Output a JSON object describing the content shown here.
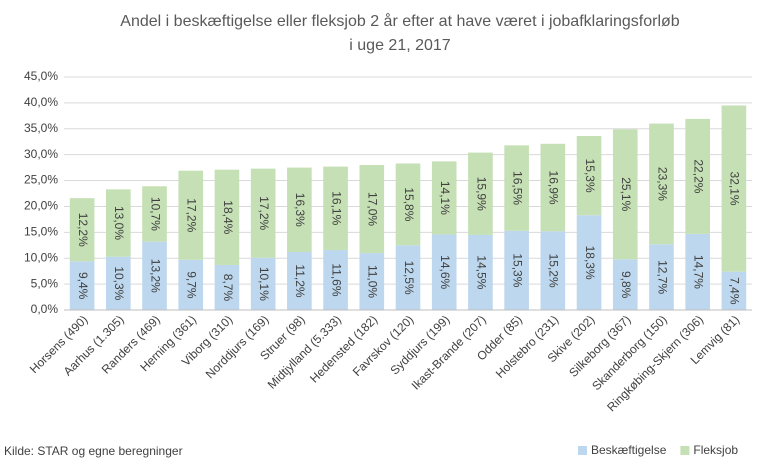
{
  "chart_data": {
    "type": "stacked_bar",
    "title_lines": [
      "Andel i beskæftigelse eller fleksjob 2 år efter at have været i jobafklaringsforløb",
      "i uge 21, 2017"
    ],
    "source": "Kilde: STAR og egne beregninger",
    "categories": [
      "Horsens (490)",
      "Aarhus (1.305)",
      "Randers (469)",
      "Herning (361)",
      "Viborg (310)",
      "Norddjurs (169)",
      "Struer (98)",
      "Midtjylland (5.333)",
      "Hedensted (182)",
      "Favrskov (120)",
      "Syddjurs (199)",
      "Ikast-Brande (207)",
      "Odder (85)",
      "Holstebro (231)",
      "Skive (202)",
      "Silkeborg (367)",
      "Skanderborg (150)",
      "Ringkøbing-Skjern (306)",
      "Lemvig (81)"
    ],
    "series": [
      {
        "name": "Beskæftigelse",
        "color": "#bdd7ee",
        "values": [
          9.4,
          10.3,
          13.2,
          9.7,
          8.7,
          10.1,
          11.2,
          11.6,
          11.0,
          12.5,
          14.6,
          14.5,
          15.3,
          15.2,
          18.3,
          9.8,
          12.7,
          14.7,
          7.4
        ],
        "value_labels": [
          "9,4%",
          "10,3%",
          "13,2%",
          "9,7%",
          "8,7%",
          "10,1%",
          "11,2%",
          "11,6%",
          "11,0%",
          "12,5%",
          "14,6%",
          "14,5%",
          "15,3%",
          "15,2%",
          "18,3%",
          "9,8%",
          "12,7%",
          "14,7%",
          "7,4%"
        ]
      },
      {
        "name": "Fleksjob",
        "color": "#c5e0b4",
        "values": [
          12.2,
          13.0,
          10.7,
          17.2,
          18.4,
          17.2,
          16.3,
          16.1,
          17.0,
          15.8,
          14.1,
          15.9,
          16.5,
          16.9,
          15.3,
          25.1,
          23.3,
          22.2,
          32.1
        ],
        "value_labels": [
          "12,2%",
          "13,0%",
          "10,7%",
          "17,2%",
          "18,4%",
          "17,2%",
          "16,3%",
          "16,1%",
          "17,0%",
          "15,8%",
          "14,1%",
          "15,9%",
          "16,5%",
          "16,9%",
          "15,3%",
          "25,1%",
          "23,3%",
          "22,2%",
          "32,1%"
        ]
      }
    ],
    "ylim": [
      0,
      45
    ],
    "yticks": [
      {
        "value": 0,
        "label": "0,0%"
      },
      {
        "value": 5,
        "label": "5,0%"
      },
      {
        "value": 10,
        "label": "10,0%"
      },
      {
        "value": 15,
        "label": "15,0%"
      },
      {
        "value": 20,
        "label": "20,0%"
      },
      {
        "value": 25,
        "label": "25,0%"
      },
      {
        "value": 30,
        "label": "30,0%"
      },
      {
        "value": 35,
        "label": "35,0%"
      },
      {
        "value": 40,
        "label": "40,0%"
      },
      {
        "value": 45,
        "label": "45,0%"
      }
    ],
    "grid": true,
    "legend": "bottom-right"
  }
}
